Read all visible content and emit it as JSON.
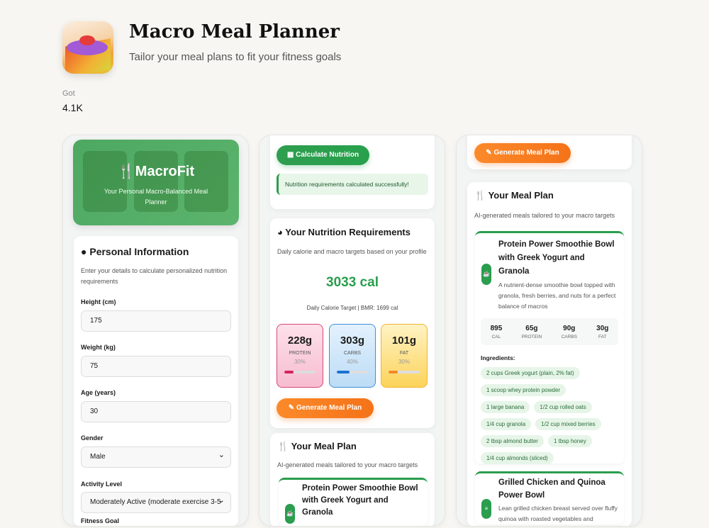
{
  "header": {
    "title": "Macro Meal Planner",
    "subtitle": "Tailor your meal plans to fit your fitness goals",
    "got_label": "Got",
    "got_value": "4.1K"
  },
  "colors": {
    "green": "#2a9d4e",
    "orange": "#f57218",
    "protein": "#d6245e",
    "carbs": "#1a73d1",
    "fat": "#f08a24"
  },
  "hero": {
    "brand": "MacroFit",
    "tagline": "Your Personal Macro-Balanced Meal Planner",
    "icon": "utensils-icon"
  },
  "personal": {
    "title": "Personal Information",
    "desc": "Enter your details to calculate personalized nutrition requirements",
    "height_label": "Height (cm)",
    "height": "175",
    "weight_label": "Weight (kg)",
    "weight": "75",
    "age_label": "Age (years)",
    "age": "30",
    "gender_label": "Gender",
    "gender": "Male",
    "activity_label": "Activity Level",
    "activity": "Moderately Active (moderate exercise 3-5",
    "goal_label": "Fitness Goal"
  },
  "calc": {
    "button": "Calculate Nutrition",
    "success": "Nutrition requirements calculated successfully!"
  },
  "requirements": {
    "title": "Your Nutrition Requirements",
    "desc": "Daily calorie and macro targets based on your profile",
    "calories": "3033 cal",
    "target": "Daily Calorie Target | BMR: 1699 cal",
    "macros": [
      {
        "value": "228g",
        "name": "PROTEIN",
        "pct": "30%",
        "fill": 30
      },
      {
        "value": "303g",
        "name": "CARBS",
        "pct": "40%",
        "fill": 40
      },
      {
        "value": "101g",
        "name": "FAT",
        "pct": "30%",
        "fill": 30
      }
    ]
  },
  "generate_button": "Generate Meal Plan",
  "meal_plan": {
    "title": "Your Meal Plan",
    "desc": "AI-generated meals tailored to your macro targets",
    "meals": [
      {
        "title": "Protein Power Smoothie Bowl with Greek Yogurt and Granola",
        "desc": "A nutrient-dense smoothie bowl topped with granola, fresh berries, and nuts for a perfect balance of macros",
        "stats": [
          {
            "v": "895",
            "l": "CAL"
          },
          {
            "v": "65g",
            "l": "PROTEIN"
          },
          {
            "v": "90g",
            "l": "CARBS"
          },
          {
            "v": "30g",
            "l": "FAT"
          }
        ],
        "ingredients_label": "Ingredients:",
        "ingredients": [
          "2 cups Greek yogurt (plain, 2% fat)",
          "1 scoop whey protein powder",
          "1 large banana",
          "1/2 cup rolled oats",
          "1/4 cup granola",
          "1/2 cup mixed berries",
          "2 tbsp almond butter",
          "1 tbsp honey",
          "1/4 cup almonds (sliced)"
        ]
      },
      {
        "title": "Grilled Chicken and Quinoa Power Bowl",
        "desc": "Lean grilled chicken breast served over fluffy quinoa with roasted vegetables and"
      }
    ]
  }
}
